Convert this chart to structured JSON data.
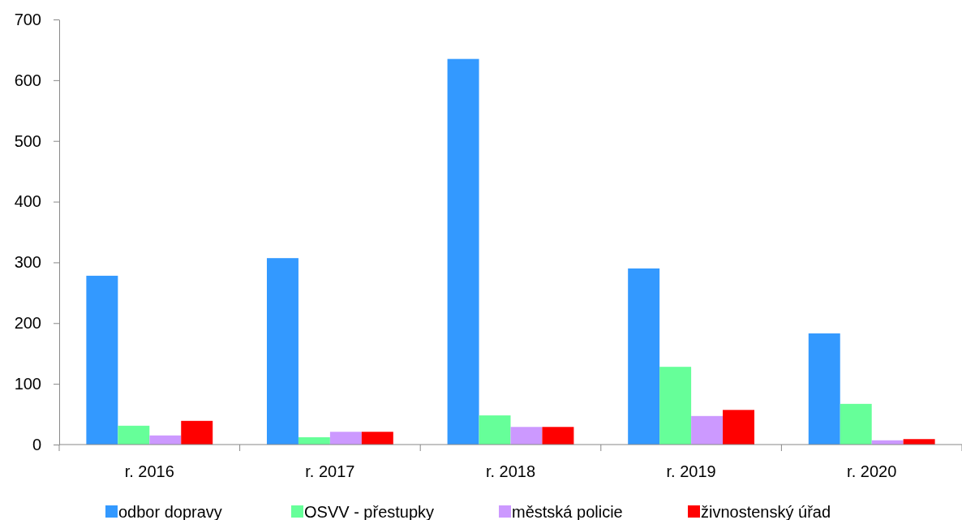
{
  "chart_data": {
    "type": "bar",
    "categories": [
      "r. 2016",
      "r. 2017",
      "r. 2018",
      "r. 2019",
      "r. 2020"
    ],
    "series": [
      {
        "name": "odbor dopravy",
        "color": "#3399ff",
        "values": [
          278,
          307,
          635,
          290,
          183
        ]
      },
      {
        "name": "OSVV - přestupky",
        "color": "#66ff99",
        "values": [
          31,
          12,
          48,
          128,
          67
        ]
      },
      {
        "name": "městská policie",
        "color": "#cc99ff",
        "values": [
          15,
          21,
          29,
          47,
          7
        ]
      },
      {
        "name": "živnostenský úřad",
        "color": "#ff0000",
        "values": [
          39,
          21,
          29,
          57,
          9
        ]
      }
    ],
    "ylim": [
      0,
      700
    ],
    "yticks": [
      0,
      100,
      200,
      300,
      400,
      500,
      600,
      700
    ],
    "grid": false,
    "legend": "bottom"
  }
}
